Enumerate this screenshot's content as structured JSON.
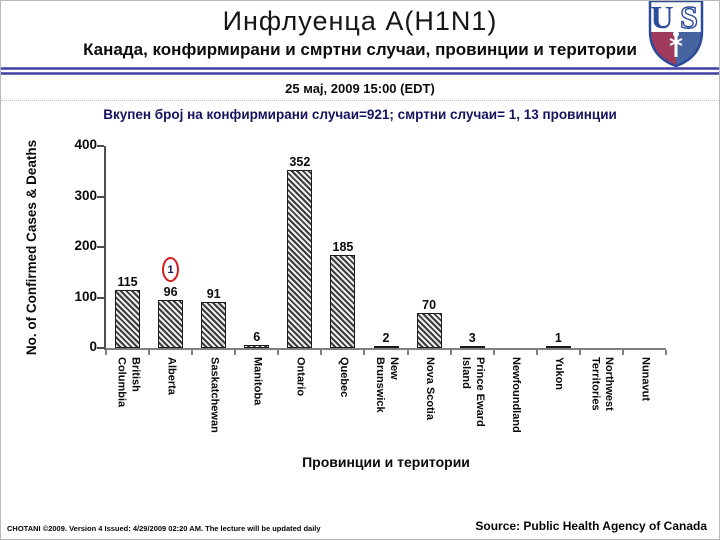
{
  "slide": {
    "title": "Инфлуенца А(H1N1)",
    "subtitle": "Канада, конфирмирани и смртни случаи, провинции и територии",
    "date_line": "25 мај, 2009 15:00 (EDT)",
    "footer_left": "CHOTANI ©2009. Version 4 Issued: 4/29/2009 02:20 AM. The lecture will be updated daily",
    "source": "Source: Public Health Agency of Canada"
  },
  "logo": {
    "name": "usu-shield-logo",
    "letters": {
      "left": "U",
      "right": "S"
    },
    "colors": {
      "blue": "#2b4b9b",
      "maroon": "#a03a5c",
      "steel": "#46649f"
    }
  },
  "chart_data": {
    "type": "bar",
    "title": "Вкупен број на конфирмирани случаи=921; смртни случаи= 1, 13  провинции",
    "xlabel": "Провинции и територии",
    "ylabel": "No. of Confirmed Cases & Deaths",
    "ylim": [
      0,
      400
    ],
    "yticks": [
      0,
      100,
      200,
      300,
      400
    ],
    "categories": [
      "British Columbia",
      "Alberta",
      "Saskatchewan",
      "Manitoba",
      "Ontario",
      "Quebec",
      "New Brunswick",
      "Nova Scotia",
      "Prince Eward Island",
      "Newfoundland",
      "Yukon",
      "Northwest Territories",
      "Nunavut"
    ],
    "category_display": [
      "British\nColumbia",
      "Alberta",
      "Saskatchewan",
      "Manitoba",
      "Ontario",
      "Quebec",
      "New\nBrunswick",
      "Nova Scotia",
      "Prince Eward\nIsland",
      "Newfoundland",
      "Yukon",
      "Northwest\nTerritories",
      "Nunavut"
    ],
    "values": [
      115,
      96,
      91,
      6,
      352,
      185,
      2,
      70,
      3,
      null,
      1,
      null,
      null
    ],
    "annotation": {
      "text": "1",
      "category": "Alberta",
      "meaning": "death count circled in red",
      "color": "#d41c1c"
    },
    "bar_style": {
      "hatch": "diagonal",
      "line_color": "#3d3d3d"
    },
    "legend": "none",
    "grid": false
  },
  "colors": {
    "divider_blue": "#30309a",
    "chart_title_navy": "#14145f",
    "annotation_red": "#d41c1c"
  }
}
